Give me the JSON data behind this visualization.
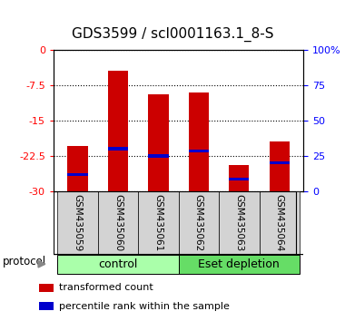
{
  "title": "GDS3599 / scl0001163.1_8-S",
  "samples": [
    "GSM435059",
    "GSM435060",
    "GSM435061",
    "GSM435062",
    "GSM435063",
    "GSM435064"
  ],
  "bar_tops": [
    -20.5,
    -4.5,
    -9.5,
    -9.0,
    -24.5,
    -19.5
  ],
  "bar_bottoms": [
    -30,
    -30,
    -30,
    -30,
    -30,
    -30
  ],
  "blue_positions": [
    -26.5,
    -21.0,
    -22.5,
    -21.5,
    -27.5,
    -24.0
  ],
  "bar_color": "#cc0000",
  "blue_color": "#0000cc",
  "ylim_left": [
    0,
    -30
  ],
  "yticks_left": [
    0,
    -7.5,
    -15,
    -22.5,
    -30
  ],
  "ylim_right": [
    100,
    0
  ],
  "yticks_right": [
    100,
    75,
    50,
    25,
    0
  ],
  "ytick_right_labels": [
    "100%",
    "75",
    "50",
    "25",
    "0"
  ],
  "groups": [
    {
      "label": "control",
      "indices": [
        0,
        1,
        2
      ],
      "color": "#90ee90"
    },
    {
      "label": "Eset depletion",
      "indices": [
        3,
        4,
        5
      ],
      "color": "#66cc66"
    }
  ],
  "protocol_label": "protocol",
  "legend_items": [
    {
      "label": "transformed count",
      "color": "#cc0000"
    },
    {
      "label": "percentile rank within the sample",
      "color": "#0000cc"
    }
  ],
  "background_color": "#ffffff",
  "bar_width": 0.5,
  "title_fontsize": 11,
  "label_gray": "#d3d3d3",
  "control_green": "#aaffaa",
  "eset_green": "#66dd66"
}
